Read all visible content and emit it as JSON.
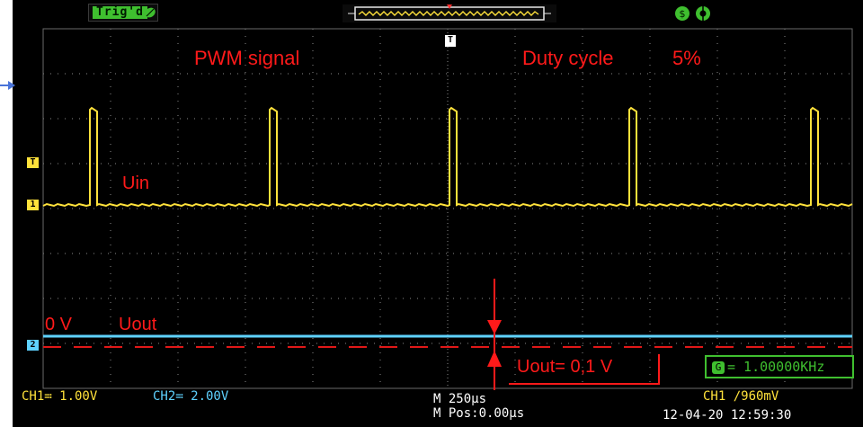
{
  "status_bar": {
    "trigger_status": "Trig'd"
  },
  "annotations": {
    "pwm_signal": "PWM signal",
    "duty_cycle_label": "Duty cycle",
    "duty_cycle_value": "5%",
    "uin": "Uin",
    "zero_v": "0 V",
    "uout": "Uout",
    "uout_eq": "Uout= 0,1 V"
  },
  "markers": {
    "trigger_level_marker": "T",
    "trigger_time_marker": "T",
    "ch1_marker": "1",
    "ch2_marker": "2"
  },
  "frequency": {
    "icon": "G",
    "value": "= 1.00000KHz"
  },
  "bottom_bar": {
    "ch1_scale": "CH1≕ 1.00V",
    "ch2_scale": "CH2≕ 2.00V",
    "timebase": "M 250μs",
    "position": "M Pos:0.00μs",
    "trigger_setting": "CH1 ∕960mV",
    "datetime": "12-04-20 12:59:30"
  },
  "colors": {
    "ch1": "#ffe23b",
    "ch2": "#5fd2ff",
    "annotation": "#ff1a1a",
    "grid": "#8a8a8a",
    "screen": "#000000"
  },
  "icons": [
    "trigger-icon",
    "memory-icon",
    "usb-icon",
    "settings-icon",
    "arrow-pointer-icon"
  ]
}
